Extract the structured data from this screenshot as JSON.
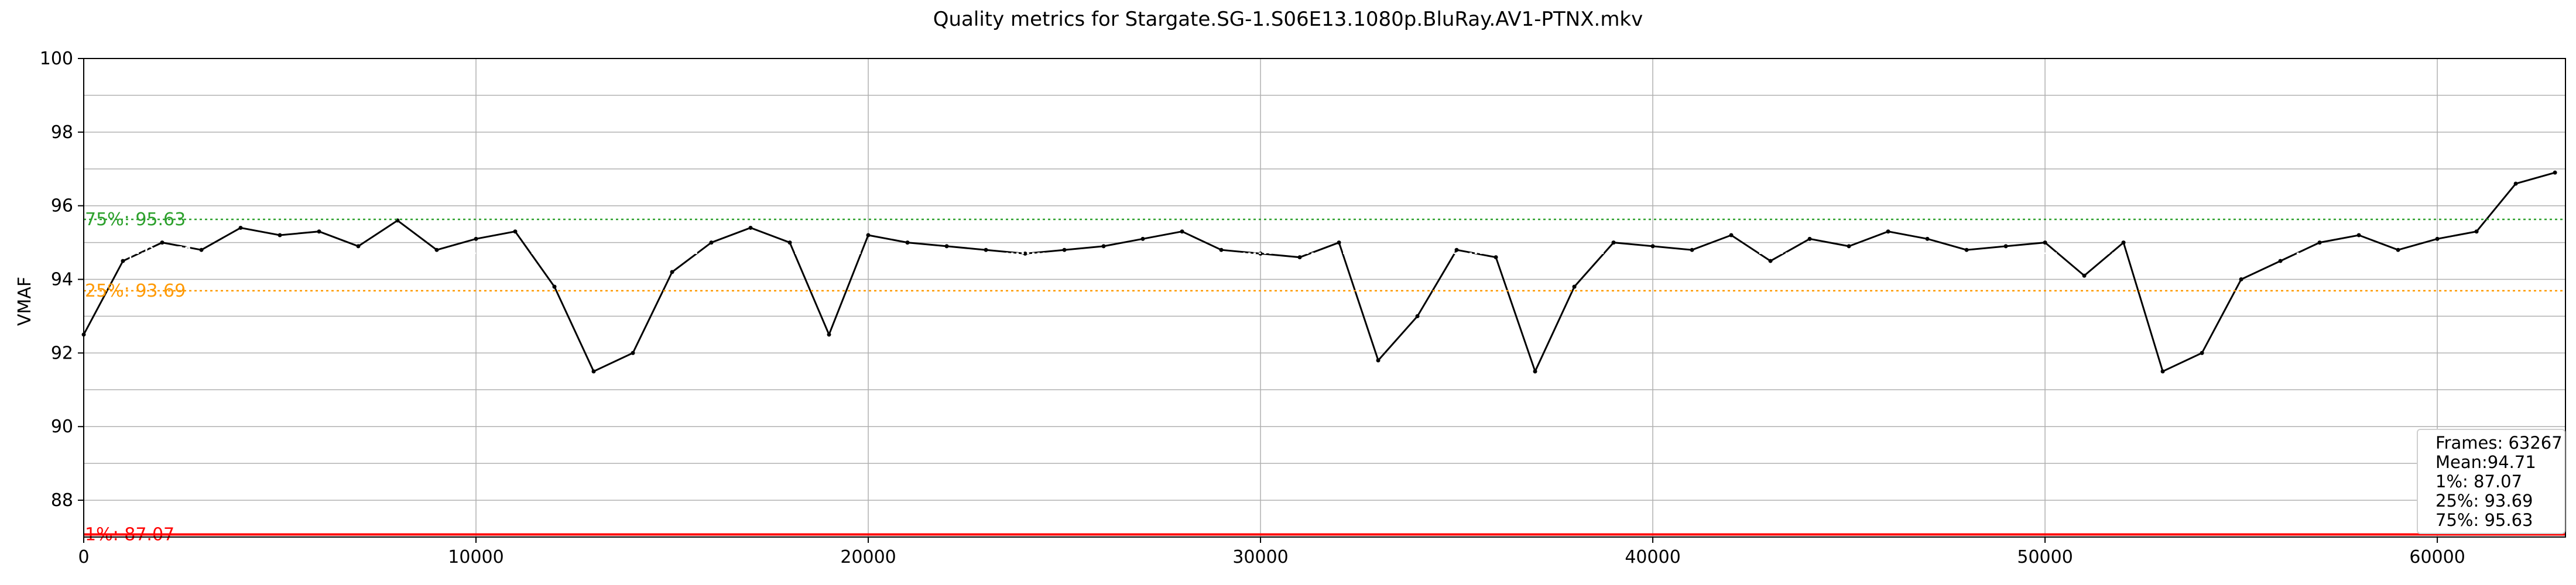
{
  "chart_data": {
    "type": "line",
    "title": "Quality metrics for Stargate.SG-1.S06E13.1080p.BluRay.AV1-PTNX.mkv",
    "xlabel": "",
    "ylabel": "VMAF",
    "xlim": [
      0,
      63267
    ],
    "ylim": [
      87,
      100
    ],
    "x_ticks": [
      0,
      10000,
      20000,
      30000,
      40000,
      50000,
      60000
    ],
    "y_ticks": [
      88,
      90,
      92,
      94,
      96,
      98,
      100
    ],
    "grid": true,
    "series": [
      {
        "name": "VMAF",
        "color": "#000000",
        "x": [
          0,
          1000,
          2000,
          3000,
          4000,
          5000,
          6000,
          7000,
          8000,
          9000,
          10000,
          11000,
          12000,
          13000,
          14000,
          15000,
          16000,
          17000,
          18000,
          19000,
          20000,
          21000,
          22000,
          23000,
          24000,
          25000,
          26000,
          27000,
          28000,
          29000,
          30000,
          31000,
          32000,
          33000,
          34000,
          35000,
          36000,
          37000,
          38000,
          39000,
          40000,
          41000,
          42000,
          43000,
          44000,
          45000,
          46000,
          47000,
          48000,
          49000,
          50000,
          51000,
          52000,
          53000,
          54000,
          55000,
          56000,
          57000,
          58000,
          59000,
          60000,
          61000,
          62000,
          63000
        ],
        "y": [
          92.5,
          94.5,
          95.0,
          94.8,
          95.4,
          95.2,
          95.3,
          94.9,
          95.6,
          94.8,
          95.1,
          95.3,
          93.8,
          91.5,
          92.0,
          94.2,
          95.0,
          95.4,
          95.0,
          92.5,
          95.2,
          95.0,
          94.9,
          94.8,
          94.7,
          94.8,
          94.9,
          95.1,
          95.3,
          94.8,
          94.7,
          94.6,
          95.0,
          91.8,
          93.0,
          94.8,
          94.6,
          91.5,
          93.8,
          95.0,
          94.9,
          94.8,
          95.2,
          94.5,
          95.1,
          94.9,
          95.3,
          95.1,
          94.8,
          94.9,
          95.0,
          94.1,
          95.0,
          91.5,
          92.0,
          94.0,
          94.5,
          95.0,
          95.2,
          94.8,
          95.1,
          95.3,
          96.6,
          96.9
        ]
      }
    ],
    "reference_lines": [
      {
        "name": "75%",
        "value": 95.63,
        "color": "#2ca02c",
        "style": "dotted",
        "label": "75%: 95.63"
      },
      {
        "name": "Mean",
        "value": 94.71,
        "color": "#ffffff",
        "style": "dotted",
        "label": "Mean: 94.71"
      },
      {
        "name": "25%",
        "value": 93.69,
        "color": "#ff9900",
        "style": "dotted",
        "label": "25%: 93.69"
      },
      {
        "name": "1%",
        "value": 87.07,
        "color": "#ff0000",
        "style": "solid",
        "label": "1%: 87.07"
      }
    ],
    "stats": {
      "frames": "Frames: 63267",
      "mean": "Mean:94.71",
      "p1": "1%: 87.07",
      "p25": "25%: 93.69",
      "p75": "75%: 95.63"
    },
    "legend_placement": "bottom-right"
  }
}
